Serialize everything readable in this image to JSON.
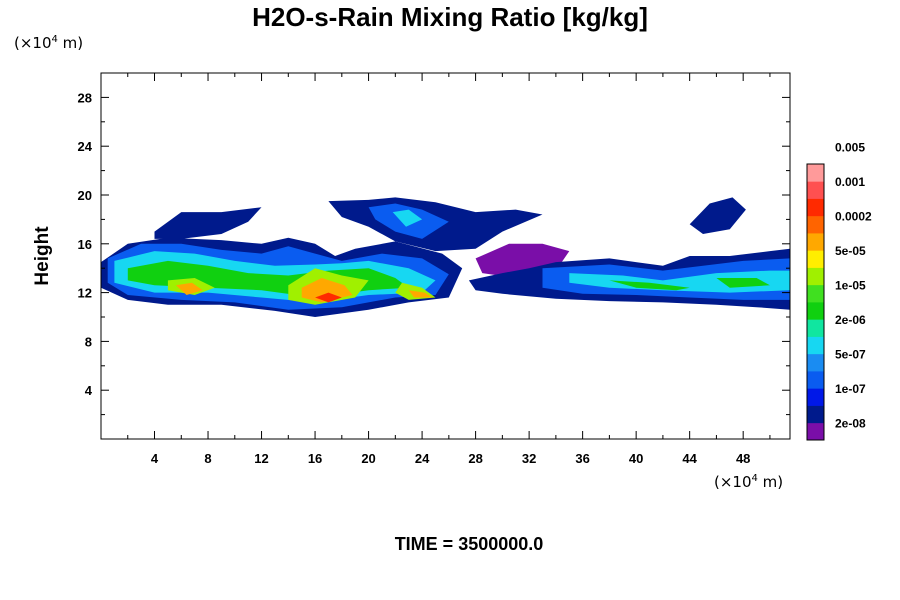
{
  "chart_data": {
    "type": "heatmap",
    "title": "H2O-s-Rain Mixing Ratio [kg/kg]",
    "ylabel": "Height",
    "x_unit": {
      "prefix": "(×10",
      "exp": "4",
      "suffix": " m)"
    },
    "y_unit": {
      "prefix": "(×10",
      "exp": "4",
      "suffix": " m)"
    },
    "xlim": [
      0,
      51.5
    ],
    "ylim": [
      0,
      30
    ],
    "x_ticks": [
      4,
      8,
      12,
      16,
      20,
      24,
      28,
      32,
      36,
      40,
      44,
      48
    ],
    "y_ticks": [
      4,
      8,
      12,
      16,
      20,
      24,
      28
    ],
    "time_label": "TIME = 3500000.0",
    "colorbar": {
      "colors": [
        "#7a0ea8",
        "#001a8c",
        "#0018e8",
        "#0a5cf0",
        "#1a8cf2",
        "#17d7f2",
        "#10e6a0",
        "#10d010",
        "#40e020",
        "#a0f000",
        "#ffee00",
        "#ffa800",
        "#ff6400",
        "#ff2a00",
        "#ff5050",
        "#ff9a9a"
      ],
      "labels": [
        "2e-08",
        "1e-07",
        "5e-07",
        "2e-06",
        "1e-05",
        "5e-05",
        "0.0002",
        "0.001",
        "0.005"
      ]
    },
    "field": {
      "description_levels": "0=none, 1..16 index into colorbar",
      "regions": [
        {
          "level": 2,
          "pts": [
            [
              0,
              14.5
            ],
            [
              2,
              16
            ],
            [
              5,
              16.5
            ],
            [
              9,
              16.3
            ],
            [
              12,
              16
            ],
            [
              14,
              16.5
            ],
            [
              16,
              16
            ],
            [
              17.5,
              15
            ],
            [
              19,
              15.6
            ],
            [
              22,
              16.2
            ],
            [
              25.5,
              15.2
            ],
            [
              27,
              14
            ],
            [
              26,
              11.6
            ],
            [
              23,
              11.2
            ],
            [
              20,
              10.6
            ],
            [
              16,
              10
            ],
            [
              13,
              10.5
            ],
            [
              9,
              11
            ],
            [
              5,
              11
            ],
            [
              2,
              11.4
            ],
            [
              0,
              12.4
            ]
          ]
        },
        {
          "level": 4,
          "pts": [
            [
              0.5,
              14.8
            ],
            [
              3,
              16
            ],
            [
              6,
              16
            ],
            [
              9,
              15.5
            ],
            [
              12,
              15.2
            ],
            [
              14,
              15.8
            ],
            [
              16,
              15.2
            ],
            [
              18,
              14.6
            ],
            [
              21,
              15.2
            ],
            [
              24,
              14.8
            ],
            [
              26,
              13.5
            ],
            [
              25,
              11.8
            ],
            [
              22,
              11.6
            ],
            [
              18,
              10.8
            ],
            [
              14,
              10.6
            ],
            [
              10,
              11.2
            ],
            [
              6,
              11.4
            ],
            [
              2,
              11.8
            ],
            [
              0.5,
              12.8
            ]
          ]
        },
        {
          "level": 6,
          "pts": [
            [
              1,
              14.6
            ],
            [
              4,
              15.4
            ],
            [
              7,
              15.2
            ],
            [
              10,
              14.6
            ],
            [
              13,
              14.2
            ],
            [
              16,
              14.3
            ],
            [
              18,
              14.4
            ],
            [
              20,
              14.6
            ],
            [
              23,
              14
            ],
            [
              25,
              13
            ],
            [
              24,
              12
            ],
            [
              20,
              11.8
            ],
            [
              16,
              11.2
            ],
            [
              12,
              11.6
            ],
            [
              8,
              12
            ],
            [
              4,
              12
            ],
            [
              1,
              12.8
            ]
          ]
        },
        {
          "level": 8,
          "pts": [
            [
              2,
              14
            ],
            [
              5,
              14.6
            ],
            [
              8,
              14.2
            ],
            [
              11,
              13.6
            ],
            [
              14,
              13.4
            ],
            [
              17,
              13.8
            ],
            [
              20,
              14
            ],
            [
              22,
              13.2
            ],
            [
              23,
              12.4
            ],
            [
              20,
              12.2
            ],
            [
              16,
              11.6
            ],
            [
              12,
              12.2
            ],
            [
              8,
              12.4
            ],
            [
              4,
              12.6
            ],
            [
              2,
              13
            ]
          ]
        },
        {
          "level": 10,
          "pts": [
            [
              5,
              13
            ],
            [
              7,
              13.2
            ],
            [
              8.5,
              12.4
            ],
            [
              7,
              11.8
            ],
            [
              5,
              12.2
            ]
          ]
        },
        {
          "level": 10,
          "pts": [
            [
              14,
              12.6
            ],
            [
              16,
              14
            ],
            [
              18,
              13.4
            ],
            [
              20,
              13
            ],
            [
              19,
              11.6
            ],
            [
              16,
              11
            ],
            [
              14,
              11.4
            ]
          ]
        },
        {
          "level": 10,
          "pts": [
            [
              22.5,
              12.8
            ],
            [
              24,
              12.4
            ],
            [
              25,
              11.6
            ],
            [
              23,
              11.4
            ],
            [
              22,
              12
            ]
          ]
        },
        {
          "level": 12,
          "pts": [
            [
              5.6,
              12.6
            ],
            [
              6.8,
              12.8
            ],
            [
              7.6,
              12.2
            ],
            [
              6.4,
              11.8
            ]
          ]
        },
        {
          "level": 12,
          "pts": [
            [
              15,
              12.4
            ],
            [
              16.5,
              13.2
            ],
            [
              18.2,
              12.6
            ],
            [
              18.8,
              11.8
            ],
            [
              16.5,
              11.2
            ],
            [
              15,
              11.6
            ]
          ]
        },
        {
          "level": 12,
          "pts": [
            [
              23,
              12.2
            ],
            [
              24.2,
              12
            ],
            [
              24.8,
              11.6
            ],
            [
              23.4,
              11.6
            ]
          ]
        },
        {
          "level": 14,
          "pts": [
            [
              16,
              11.6
            ],
            [
              17,
              12
            ],
            [
              18,
              11.6
            ],
            [
              17,
              11.2
            ]
          ]
        },
        {
          "level": 2,
          "pts": [
            [
              4,
              17
            ],
            [
              6,
              18.6
            ],
            [
              9,
              18.6
            ],
            [
              12,
              19
            ],
            [
              11,
              17.8
            ],
            [
              9,
              16.8
            ],
            [
              6,
              16.4
            ],
            [
              4,
              16.4
            ]
          ]
        },
        {
          "level": 2,
          "pts": [
            [
              17,
              19.5
            ],
            [
              20,
              19.6
            ],
            [
              22,
              19.8
            ],
            [
              25,
              19.4
            ],
            [
              28,
              18.6
            ],
            [
              31,
              18.8
            ],
            [
              33,
              18.4
            ],
            [
              30,
              17
            ],
            [
              28,
              15.6
            ],
            [
              25,
              15.4
            ],
            [
              22,
              16.2
            ],
            [
              20,
              17.4
            ],
            [
              18,
              18.2
            ]
          ]
        },
        {
          "level": 4,
          "pts": [
            [
              20,
              19
            ],
            [
              22,
              19.3
            ],
            [
              24,
              18.8
            ],
            [
              26,
              17.8
            ],
            [
              24,
              16.4
            ],
            [
              22,
              17
            ],
            [
              20.5,
              18
            ]
          ]
        },
        {
          "level": 6,
          "pts": [
            [
              21.8,
              18.6
            ],
            [
              23,
              18.8
            ],
            [
              24,
              18
            ],
            [
              22.8,
              17.4
            ]
          ]
        },
        {
          "level": 1,
          "pts": [
            [
              28,
              14.8
            ],
            [
              30.5,
              16
            ],
            [
              33,
              16
            ],
            [
              35,
              15.4
            ],
            [
              34,
              13.8
            ],
            [
              31,
              13.2
            ],
            [
              28.5,
              13.6
            ]
          ]
        },
        {
          "level": 2,
          "pts": [
            [
              27.5,
              13
            ],
            [
              30,
              13.6
            ],
            [
              32,
              14
            ],
            [
              34,
              14.5
            ],
            [
              38,
              14.8
            ],
            [
              42,
              14.2
            ],
            [
              44,
              15
            ],
            [
              47,
              15
            ],
            [
              50,
              15.4
            ],
            [
              51.5,
              15.6
            ],
            [
              51.5,
              10.6
            ],
            [
              49,
              10.8
            ],
            [
              46,
              11
            ],
            [
              42,
              11.2
            ],
            [
              38,
              11.3
            ],
            [
              34,
              11.5
            ],
            [
              30,
              11.9
            ],
            [
              28,
              12.2
            ]
          ]
        },
        {
          "level": 2,
          "pts": [
            [
              44,
              17.6
            ],
            [
              45.5,
              19.3
            ],
            [
              47.2,
              19.8
            ],
            [
              48.2,
              18.8
            ],
            [
              47,
              17.2
            ],
            [
              45,
              16.8
            ]
          ]
        },
        {
          "level": 4,
          "pts": [
            [
              33,
              14
            ],
            [
              38,
              14.3
            ],
            [
              42,
              13.8
            ],
            [
              45,
              14.2
            ],
            [
              48,
              14.6
            ],
            [
              51.5,
              14.8
            ],
            [
              51.5,
              11.4
            ],
            [
              48,
              11.4
            ],
            [
              44,
              11.6
            ],
            [
              40,
              11.8
            ],
            [
              36,
              11.9
            ],
            [
              33,
              12.4
            ]
          ]
        },
        {
          "level": 6,
          "pts": [
            [
              35,
              13.6
            ],
            [
              39,
              13.4
            ],
            [
              42,
              13
            ],
            [
              46,
              13.6
            ],
            [
              50,
              13.8
            ],
            [
              51.5,
              13.8
            ],
            [
              51.5,
              12.2
            ],
            [
              47,
              12
            ],
            [
              42,
              12.2
            ],
            [
              38,
              12.4
            ],
            [
              35,
              12.8
            ]
          ]
        },
        {
          "level": 8,
          "pts": [
            [
              38,
              13
            ],
            [
              41,
              12.8
            ],
            [
              44,
              12.4
            ],
            [
              43,
              12.2
            ],
            [
              40,
              12.4
            ]
          ]
        },
        {
          "level": 8,
          "pts": [
            [
              46,
              13.2
            ],
            [
              49,
              13.2
            ],
            [
              50,
              12.6
            ],
            [
              47,
              12.4
            ]
          ]
        }
      ]
    }
  }
}
